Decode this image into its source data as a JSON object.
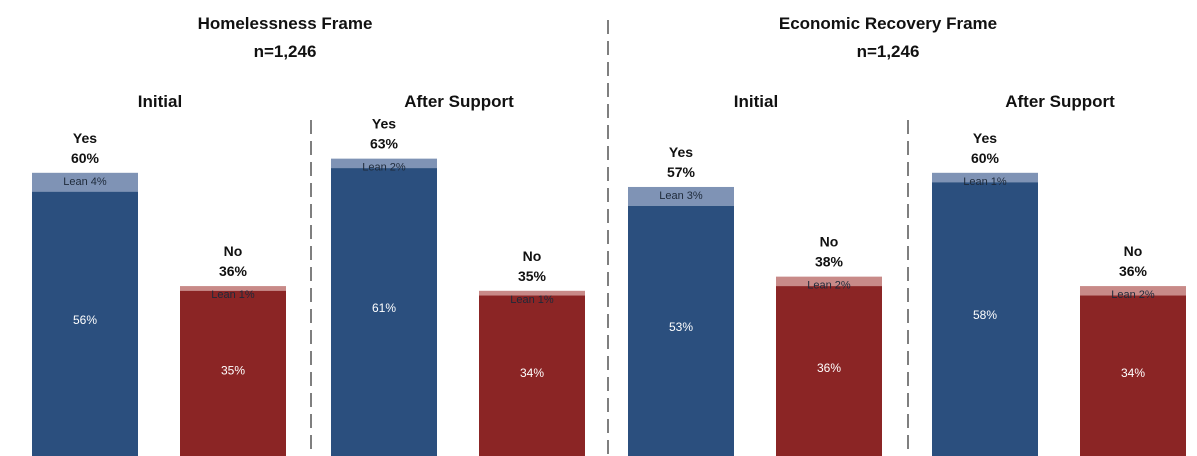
{
  "colors": {
    "yes_main": "#2b4f7e",
    "yes_lean": "#7f93b5",
    "no_main": "#8b2525",
    "no_lean": "#c88a88",
    "divider": "#555555"
  },
  "chart_data": {
    "type": "bar",
    "stacked": true,
    "ylim": [
      0,
      66
    ],
    "frames": [
      {
        "title": "Homelessness Frame",
        "n": "n=1,246",
        "panels": [
          {
            "title": "Initial",
            "bars": [
              {
                "label": "Yes",
                "total": 60,
                "total_label": "60%",
                "main": 56,
                "main_label": "56%",
                "lean": 4,
                "lean_label": "Lean 4%",
                "kind": "yes"
              },
              {
                "label": "No",
                "total": 36,
                "total_label": "36%",
                "main": 35,
                "main_label": "35%",
                "lean": 1,
                "lean_label": "Lean 1%",
                "kind": "no"
              }
            ]
          },
          {
            "title": "After Support",
            "bars": [
              {
                "label": "Yes",
                "total": 63,
                "total_label": "63%",
                "main": 61,
                "main_label": "61%",
                "lean": 2,
                "lean_label": "Lean 2%",
                "kind": "yes"
              },
              {
                "label": "No",
                "total": 35,
                "total_label": "35%",
                "main": 34,
                "main_label": "34%",
                "lean": 1,
                "lean_label": "Lean 1%",
                "kind": "no"
              }
            ]
          }
        ]
      },
      {
        "title": "Economic Recovery Frame",
        "n": "n=1,246",
        "panels": [
          {
            "title": "Initial",
            "bars": [
              {
                "label": "Yes",
                "total": 57,
                "total_label": "57%",
                "main": 53,
                "main_label": "53%",
                "lean": 3,
                "lean_label": "Lean 3%",
                "kind": "yes"
              },
              {
                "label": "No",
                "total": 38,
                "total_label": "38%",
                "main": 36,
                "main_label": "36%",
                "lean": 2,
                "lean_label": "Lean 2%",
                "kind": "no"
              }
            ]
          },
          {
            "title": "After Support",
            "bars": [
              {
                "label": "Yes",
                "total": 60,
                "total_label": "60%",
                "main": 58,
                "main_label": "58%",
                "lean": 1,
                "lean_label": "Lean 1%",
                "kind": "yes"
              },
              {
                "label": "No",
                "total": 36,
                "total_label": "36%",
                "main": 34,
                "main_label": "34%",
                "lean": 2,
                "lean_label": "Lean 2%",
                "kind": "no"
              }
            ]
          }
        ]
      }
    ]
  }
}
